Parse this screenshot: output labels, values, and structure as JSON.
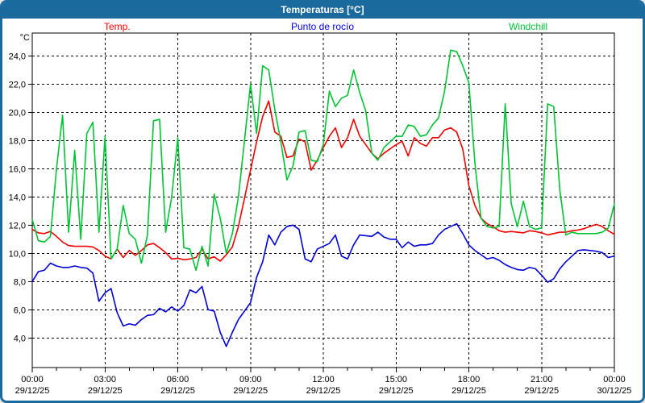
{
  "window": {
    "title": "Temperaturas [°C]"
  },
  "legend": [
    {
      "key": "temp",
      "label": "Temp.",
      "color": "#ff0000"
    },
    {
      "key": "dew-point",
      "label": "Punto de rocío",
      "color": "#0000ff"
    },
    {
      "key": "windchill",
      "label": "Windchill",
      "color": "#00c435"
    }
  ],
  "chart_data": {
    "type": "line",
    "title": "Temperaturas [°C]",
    "ylabel": "°C",
    "xlabel": "",
    "grid": true,
    "legend_position": "top",
    "ylim": [
      1.9,
      25.62
    ],
    "yticks": [
      24,
      22,
      20,
      18,
      16,
      14,
      12,
      10,
      8,
      6,
      4
    ],
    "ytick_labels": [
      "24,0",
      "22,0",
      "20,0",
      "18,0",
      "16,0",
      "14,0",
      "12,0",
      "10,0",
      "8,0",
      "6,0",
      "4,0"
    ],
    "x_start_hour": 0,
    "x_step_hours": 0.25,
    "x_total_hours": 24,
    "xticks": [
      {
        "hour": 0,
        "time": "00:00",
        "date": "29/12/25"
      },
      {
        "hour": 3,
        "time": "03:00",
        "date": "29/12/25"
      },
      {
        "hour": 6,
        "time": "06:00",
        "date": "29/12/25"
      },
      {
        "hour": 9,
        "time": "09:00",
        "date": "29/12/25"
      },
      {
        "hour": 12,
        "time": "12:00",
        "date": "29/12/25"
      },
      {
        "hour": 15,
        "time": "15:00",
        "date": "29/12/25"
      },
      {
        "hour": 18,
        "time": "18:00",
        "date": "29/12/25"
      },
      {
        "hour": 21,
        "time": "21:00",
        "date": "29/12/25"
      },
      {
        "hour": 24,
        "time": "00:00",
        "date": "30/12/25"
      }
    ],
    "series": [
      {
        "name": "Temp.",
        "color": "#f00000",
        "values": [
          11.7,
          11.45,
          11.4,
          11.55,
          11.2,
          10.8,
          10.55,
          10.5,
          10.5,
          10.5,
          10.45,
          10.2,
          9.8,
          9.6,
          10.3,
          9.7,
          10.2,
          9.85,
          10.2,
          10.6,
          10.7,
          10.4,
          10.05,
          9.6,
          9.65,
          9.55,
          9.6,
          9.7,
          10.3,
          9.6,
          9.75,
          9.45,
          9.9,
          10.45,
          11.9,
          13.9,
          15.9,
          17.9,
          19.7,
          20.8,
          18.6,
          18.3,
          16.8,
          16.9,
          18.1,
          17.9,
          15.9,
          16.6,
          17.5,
          18.3,
          18.9,
          17.5,
          18.2,
          19.5,
          18.3,
          17.7,
          17.1,
          16.7,
          17.1,
          17.4,
          17.7,
          17.95,
          16.9,
          18.2,
          17.8,
          17.6,
          18.2,
          18.2,
          18.75,
          18.9,
          18.6,
          17.4,
          14.8,
          13.4,
          12.5,
          12.1,
          11.9,
          11.6,
          11.5,
          11.55,
          11.5,
          11.45,
          11.6,
          11.55,
          11.45,
          11.3,
          11.4,
          11.5,
          11.5,
          11.6,
          11.65,
          11.75,
          11.9,
          12.05,
          11.9,
          11.6,
          11.35
        ]
      },
      {
        "name": "Punto de rocío",
        "color": "#0000d8",
        "values": [
          8.0,
          8.7,
          8.8,
          9.3,
          9.1,
          9.0,
          9.0,
          9.1,
          9.0,
          8.95,
          8.6,
          6.6,
          7.2,
          7.5,
          5.8,
          4.85,
          5.0,
          4.9,
          5.3,
          5.6,
          5.65,
          6.1,
          5.85,
          6.2,
          5.9,
          6.3,
          7.4,
          7.2,
          7.65,
          6.0,
          5.9,
          4.4,
          3.4,
          4.4,
          5.3,
          5.9,
          6.5,
          8.3,
          9.4,
          11.3,
          10.6,
          11.5,
          11.9,
          12.0,
          11.7,
          9.6,
          9.4,
          10.3,
          10.5,
          10.7,
          11.3,
          9.8,
          9.6,
          10.6,
          11.3,
          11.25,
          11.2,
          11.5,
          11.15,
          11.0,
          11.0,
          10.4,
          10.8,
          10.5,
          10.6,
          10.6,
          10.7,
          11.3,
          11.7,
          11.9,
          12.1,
          11.4,
          10.6,
          10.2,
          9.9,
          9.6,
          9.7,
          9.5,
          9.2,
          9.0,
          8.85,
          8.8,
          9.0,
          8.9,
          8.45,
          7.95,
          8.2,
          8.9,
          9.4,
          9.8,
          10.2,
          10.25,
          10.2,
          10.15,
          10.05,
          9.7,
          9.8
        ]
      },
      {
        "name": "Windchill",
        "color": "#00c435",
        "values": [
          12.4,
          10.9,
          10.8,
          11.2,
          16.0,
          19.8,
          11.5,
          17.3,
          11.0,
          18.5,
          19.3,
          11.5,
          18.3,
          9.6,
          10.3,
          13.4,
          11.4,
          11.0,
          9.3,
          11.3,
          19.4,
          19.5,
          11.5,
          14.0,
          18.2,
          10.4,
          10.3,
          8.8,
          10.5,
          9.1,
          14.2,
          12.5,
          10.0,
          11.4,
          14.0,
          18.0,
          22.0,
          18.5,
          23.3,
          23.0,
          20.2,
          17.9,
          15.2,
          16.2,
          18.6,
          18.7,
          16.6,
          16.5,
          17.7,
          21.5,
          20.4,
          21.0,
          21.2,
          23.0,
          21.4,
          20.1,
          17.1,
          16.6,
          17.5,
          17.9,
          18.3,
          18.3,
          19.1,
          19.0,
          18.3,
          18.4,
          19.1,
          19.6,
          21.5,
          24.4,
          24.3,
          23.3,
          22.1,
          16.4,
          12.5,
          11.9,
          11.8,
          11.9,
          20.6,
          13.5,
          11.9,
          13.7,
          11.9,
          11.7,
          11.8,
          20.6,
          20.4,
          14.5,
          11.3,
          11.5,
          11.4,
          11.4,
          11.4,
          11.4,
          11.5,
          11.8,
          13.5
        ]
      }
    ]
  }
}
